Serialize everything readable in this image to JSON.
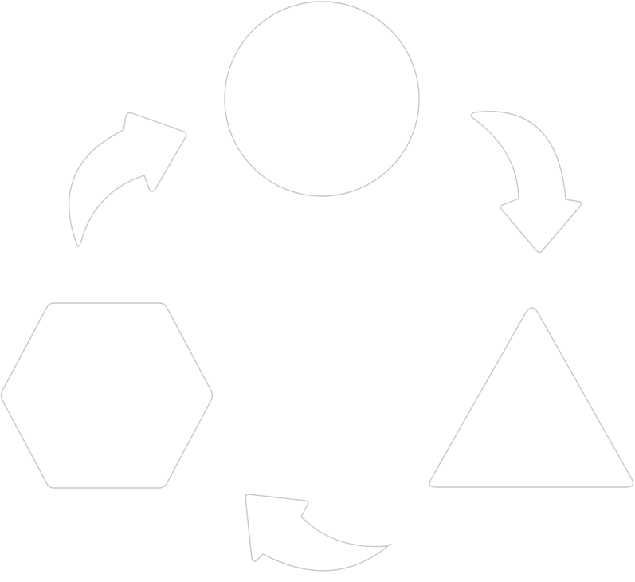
{
  "diagram": {
    "type": "cycle",
    "nodes": [
      {
        "id": "circle",
        "shape": "circle"
      },
      {
        "id": "triangle",
        "shape": "triangle"
      },
      {
        "id": "hexagon",
        "shape": "hexagon"
      }
    ],
    "edges": [
      {
        "from": "circle",
        "to": "triangle",
        "style": "curved-arrow"
      },
      {
        "from": "triangle",
        "to": "hexagon",
        "style": "curved-arrow"
      },
      {
        "from": "hexagon",
        "to": "circle",
        "style": "curved-arrow"
      }
    ],
    "colors": {
      "background": "#ffffff",
      "fill": "#ffffff",
      "stroke": "#c8c8c8"
    }
  }
}
